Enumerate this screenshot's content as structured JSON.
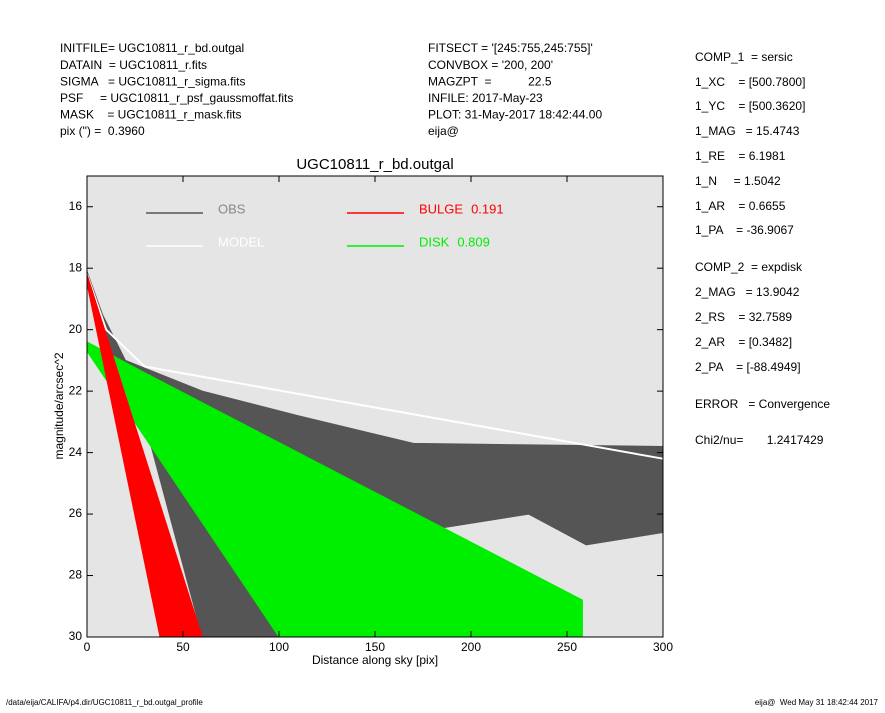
{
  "header": {
    "left": [
      "INITFILE= UGC10811_r_bd.outgal",
      "DATAIN  = UGC10811_r.fits",
      "SIGMA   = UGC10811_r_sigma.fits",
      "PSF     = UGC10811_r_psf_gaussmoffat.fits",
      "MASK    = UGC10811_r_mask.fits",
      "pix (\") =  0.3960"
    ],
    "middle": [
      "FITSECT = '[245:755,245:755]'",
      "CONVBOX = '200, 200'",
      "MAGZPT  =           22.5",
      "INFILE: 2017-May-23",
      "PLOT: 31-May-2017 18:42:44.00",
      "eija@"
    ],
    "right": [
      "COMP_1  = sersic",
      "1_XC    = [500.7800]",
      "1_YC    = [500.3620]",
      "1_MAG   = 15.4743",
      "1_RE    = 6.1981",
      "1_N     = 1.5042",
      "1_AR    = 0.6655",
      "1_PA    = -36.9067",
      "COMP_2  = expdisk",
      "2_MAG   = 13.9042",
      "2_RS    = 32.7589",
      "2_AR    = [0.3482]",
      "2_PA    = [-88.4949]",
      "ERROR   = Convergence",
      "Chi2/nu=       1.2417429"
    ]
  },
  "footer": {
    "left": "/data/eija/CALIFA/p4.dir/UGC10811_r_bd.outgal_profile",
    "right": "eija@  Wed May 31 18:42:44 2017"
  },
  "chart_data": {
    "type": "area",
    "title": "UGC10811_r_bd.outgal",
    "x_label": "Distance along sky [pix]",
    "y_label": "magnitude/arcsec^2",
    "xlim": [
      0,
      300
    ],
    "xticks": [
      0,
      50,
      100,
      150,
      200,
      250,
      300
    ],
    "ylim": [
      30,
      15
    ],
    "yticks": [
      16,
      18,
      20,
      22,
      24,
      26,
      28,
      30
    ],
    "series": [
      {
        "name": "OBS",
        "color": "#555555",
        "fill": true,
        "x": [
          0,
          8,
          20,
          60,
          110,
          170,
          300,
          300,
          260,
          230,
          180,
          150,
          60,
          30,
          10
        ],
        "values": [
          18.1,
          19.5,
          21,
          22,
          22.8,
          23.7,
          23.8,
          26.6,
          27,
          26,
          26.5,
          30,
          30,
          23,
          20.5
        ]
      },
      {
        "name": "MODEL",
        "color": "#ffffff",
        "fill": false,
        "x": [
          0,
          10,
          30,
          300
        ],
        "values": [
          18.2,
          20,
          21.2,
          24.2
        ]
      },
      {
        "name": "DISK",
        "color": "#00ee00",
        "fill": true,
        "fraction": 0.809,
        "x": [
          0,
          30,
          258,
          258,
          100,
          0
        ],
        "values": [
          20.4,
          21.4,
          28.8,
          30,
          30,
          20.7
        ]
      },
      {
        "name": "BULGE",
        "color": "#ff0000",
        "fill": true,
        "fraction": 0.191,
        "x": [
          0,
          60,
          38,
          0
        ],
        "values": [
          18.2,
          30,
          30,
          18.5
        ]
      }
    ],
    "legend_order": [
      0,
      1,
      3,
      2
    ]
  }
}
